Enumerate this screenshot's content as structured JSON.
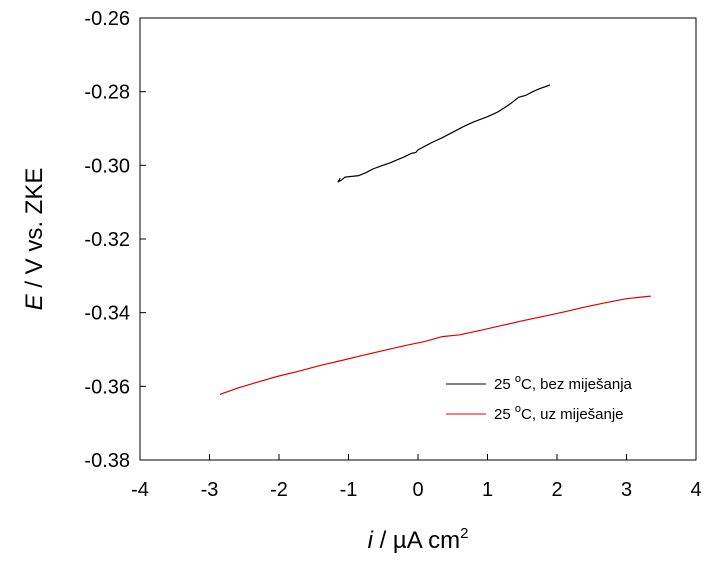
{
  "chart_data": {
    "type": "line",
    "xlim": [
      -4,
      4
    ],
    "ylim": [
      -0.38,
      -0.26
    ],
    "x_ticks": [
      -4,
      -3,
      -2,
      -1,
      0,
      1,
      2,
      3,
      4
    ],
    "y_ticks": [
      -0.38,
      -0.36,
      -0.34,
      -0.32,
      -0.3,
      -0.28,
      -0.26
    ],
    "x_tick_labels": [
      "-4",
      "-3",
      "-2",
      "-1",
      "0",
      "1",
      "2",
      "3",
      "4"
    ],
    "y_tick_labels": [
      "-0.38",
      "-0.36",
      "-0.34",
      "-0.32",
      "-0.30",
      "-0.28",
      "-0.26"
    ],
    "xlabel": {
      "var": "i",
      "text": " / µA cm",
      "sup": "2"
    },
    "ylabel": {
      "var": "E",
      "text": " / V vs. ZKE"
    },
    "grid": false,
    "legend_position": "bottom-right",
    "series": [
      {
        "name_prefix": "25 ",
        "name_sup": "o",
        "name_suffix": "C, bez miješanja",
        "color": "#000000",
        "x": [
          -1.12,
          -1.15,
          -1.1,
          -1.05,
          -0.85,
          -0.75,
          -0.65,
          -0.55,
          -0.4,
          -0.3,
          -0.2,
          -0.1,
          -0.03,
          0.0,
          0.1,
          0.2,
          0.35,
          0.5,
          0.65,
          0.8,
          1.0,
          1.15,
          1.25,
          1.35,
          1.45,
          1.55,
          1.65,
          1.75,
          1.9
        ],
        "y": [
          -0.3035,
          -0.3045,
          -0.304,
          -0.3032,
          -0.3028,
          -0.302,
          -0.301,
          -0.3003,
          -0.2993,
          -0.2985,
          -0.2977,
          -0.2968,
          -0.2965,
          -0.2958,
          -0.2948,
          -0.2938,
          -0.2925,
          -0.291,
          -0.2895,
          -0.2882,
          -0.2868,
          -0.2855,
          -0.2843,
          -0.283,
          -0.2815,
          -0.281,
          -0.28,
          -0.2792,
          -0.2782
        ]
      },
      {
        "name_prefix": "25 ",
        "name_sup": "o",
        "name_suffix": "C, uz miješanje",
        "color": "#e00000",
        "x": [
          -2.85,
          -2.6,
          -2.3,
          -2.0,
          -1.7,
          -1.4,
          -1.1,
          -0.8,
          -0.5,
          -0.2,
          0.1,
          0.35,
          0.6,
          0.9,
          1.2,
          1.5,
          1.8,
          2.1,
          2.4,
          2.7,
          3.0,
          3.35
        ],
        "y": [
          -0.3622,
          -0.3605,
          -0.3588,
          -0.3572,
          -0.3558,
          -0.3543,
          -0.353,
          -0.3516,
          -0.3503,
          -0.349,
          -0.3478,
          -0.3465,
          -0.346,
          -0.3448,
          -0.3435,
          -0.3422,
          -0.341,
          -0.3398,
          -0.3385,
          -0.3373,
          -0.3362,
          -0.3355
        ]
      }
    ]
  }
}
